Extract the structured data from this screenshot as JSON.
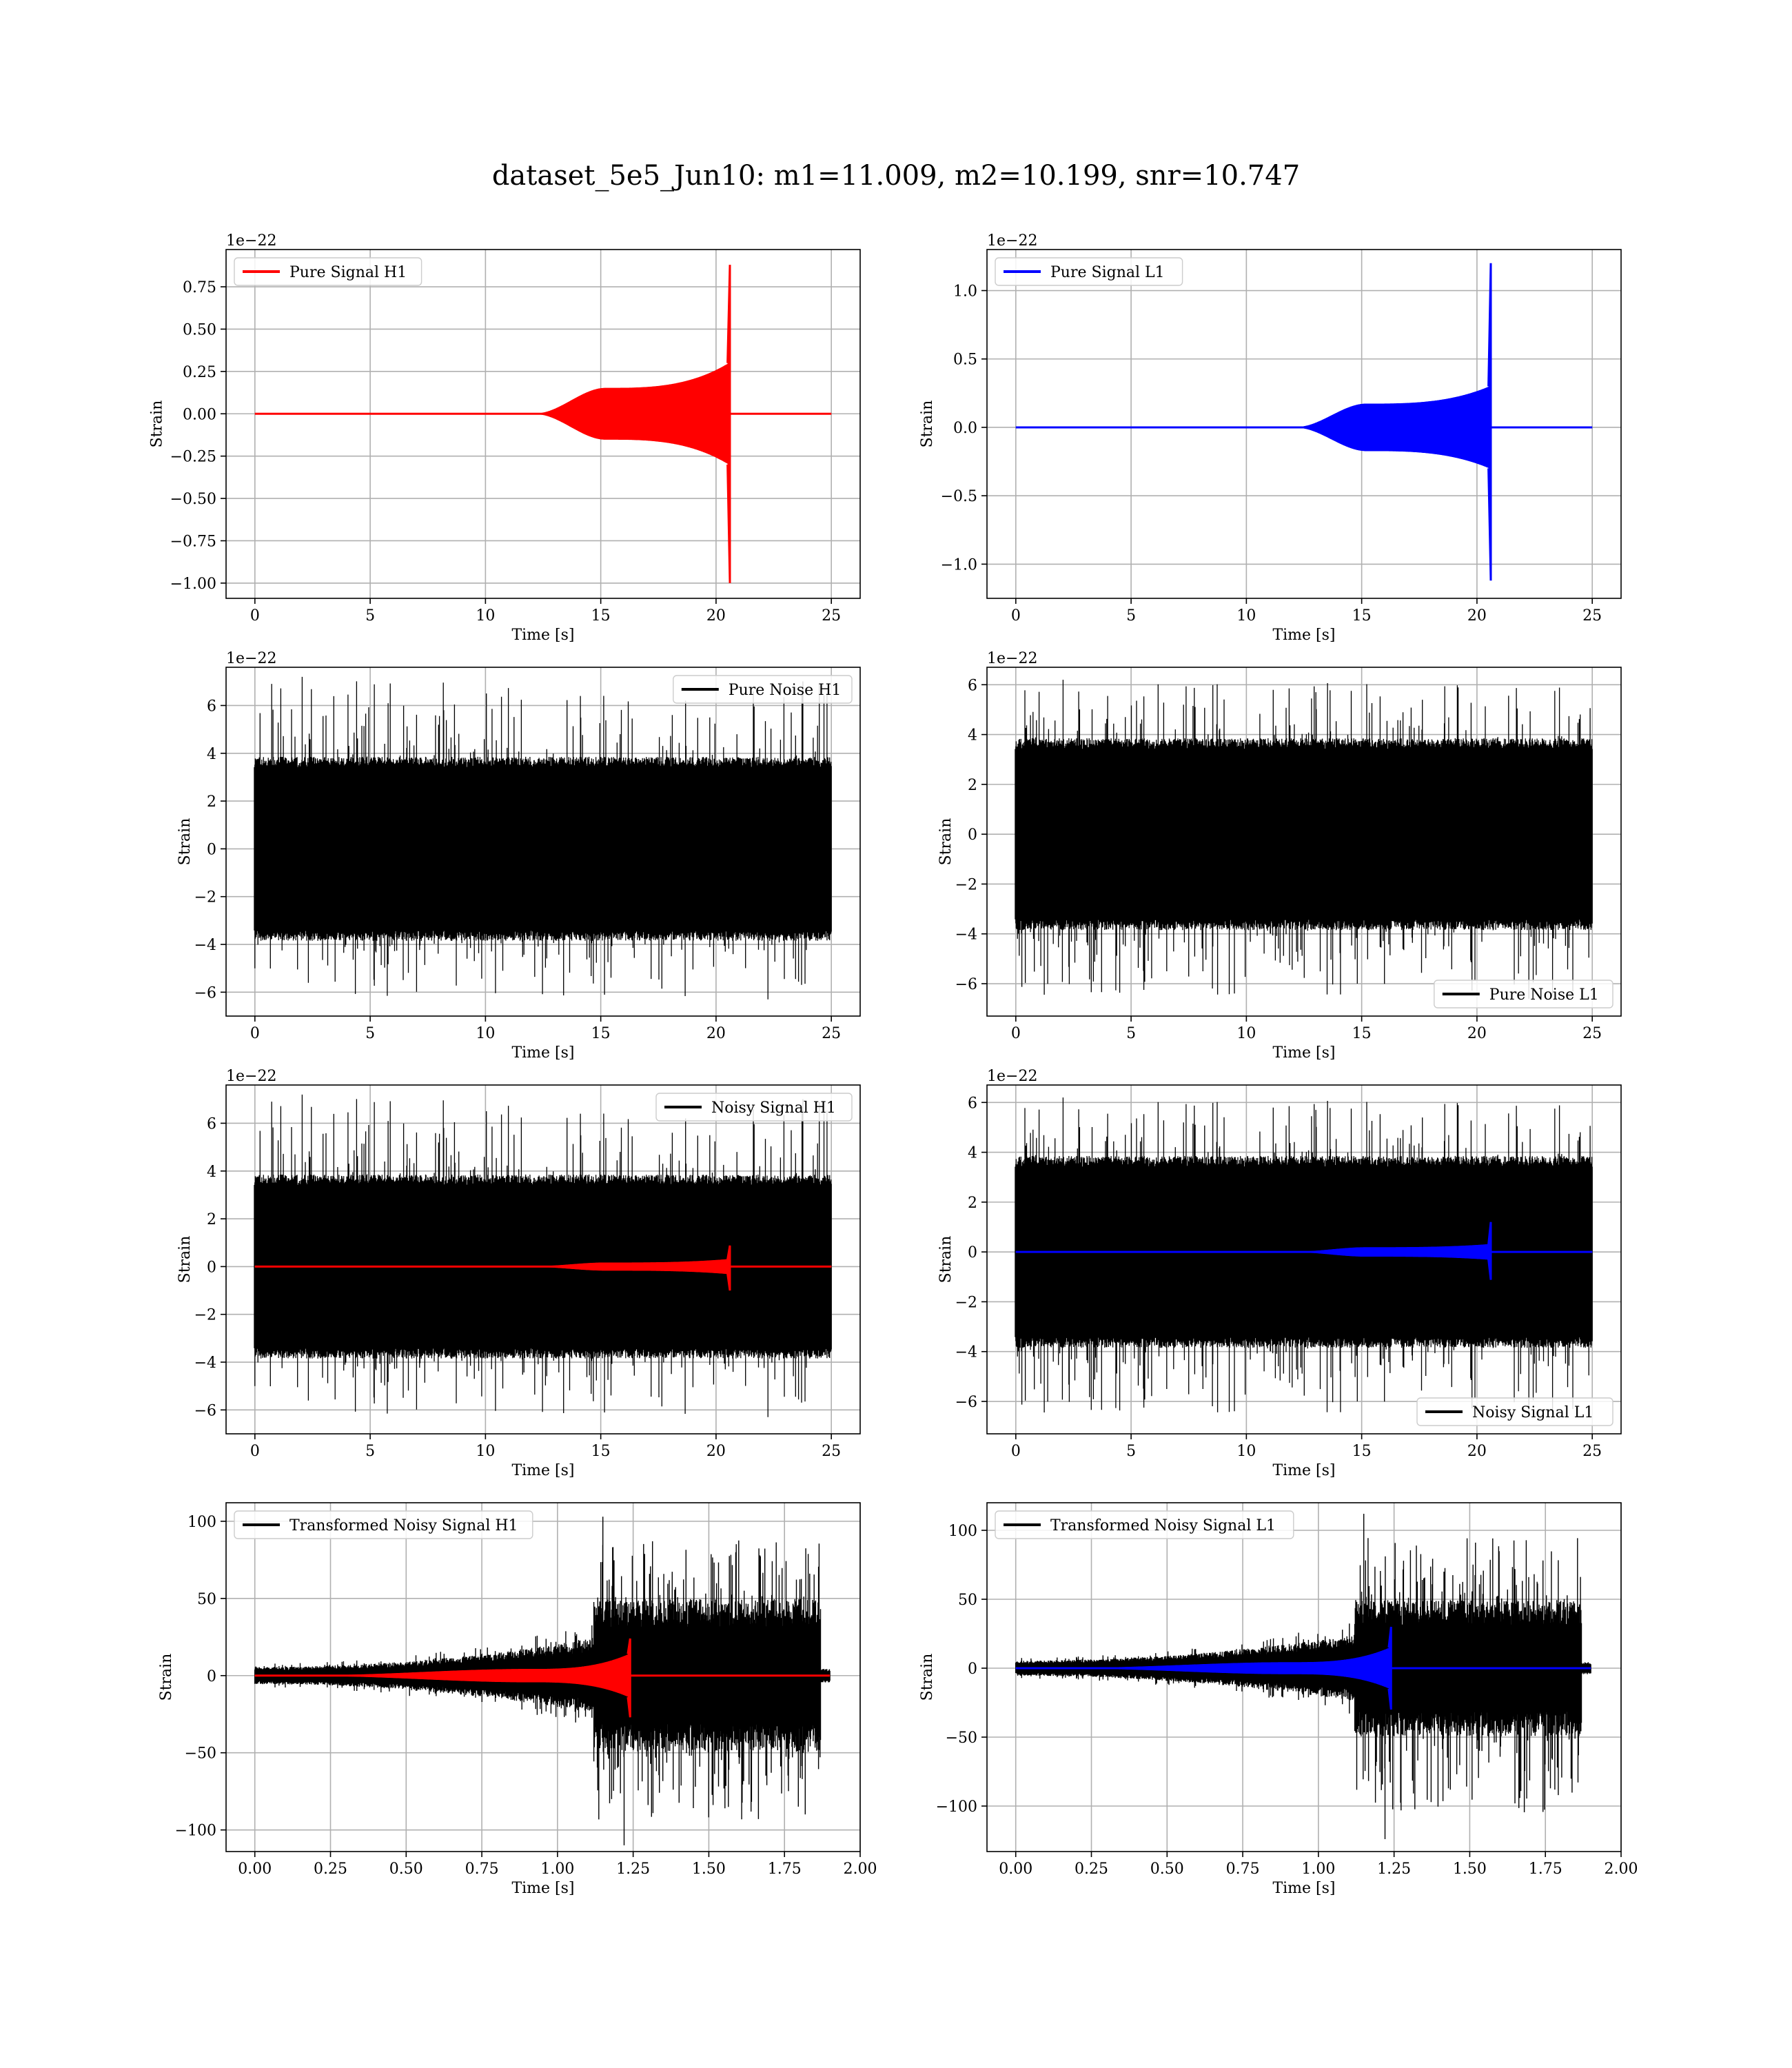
{
  "figure": {
    "title": "dataset_5e5_Jun10: m1=11.009, m2=10.199, snr=10.747"
  },
  "colors": {
    "h1_signal": "#ff0000",
    "l1_signal": "#0000ff",
    "noise": "#000000"
  },
  "chart_data": [
    {
      "id": "pure_signal_h1",
      "type": "line",
      "title": "",
      "xlabel": "Time [s]",
      "ylabel": "Strain",
      "offset_text": "1e−22",
      "xlim": [
        -1.25,
        26.25
      ],
      "ylim": [
        -1.09,
        0.97
      ],
      "xticks": [
        0,
        5,
        10,
        15,
        20,
        25
      ],
      "yticks": [
        -1.0,
        -0.75,
        -0.5,
        -0.25,
        0.0,
        0.25,
        0.5,
        0.75
      ],
      "ytick_labels": [
        "−1.00",
        "−0.75",
        "−0.50",
        "−0.25",
        "0.00",
        "0.25",
        "0.50",
        "0.75"
      ],
      "grid": true,
      "legend_loc": "upper left",
      "series": [
        {
          "name": "Pure Signal H1",
          "color": "#ff0000",
          "kind": "chirp",
          "x_start": 0,
          "x_end": 25,
          "t_onset": 12.2,
          "t_plateau": 15.2,
          "t_merger": 20.6,
          "plateau_amp": 0.15,
          "pre_merger_amp": 0.3,
          "peak_pos": 0.88,
          "peak_neg": -1.0
        }
      ]
    },
    {
      "id": "pure_signal_l1",
      "type": "line",
      "title": "",
      "xlabel": "Time [s]",
      "ylabel": "Strain",
      "offset_text": "1e−22",
      "xlim": [
        -1.25,
        26.25
      ],
      "ylim": [
        -1.25,
        1.3
      ],
      "xticks": [
        0,
        5,
        10,
        15,
        20,
        25
      ],
      "yticks": [
        -1.0,
        -0.5,
        0.0,
        0.5,
        1.0
      ],
      "ytick_labels": [
        "−1.0",
        "−0.5",
        "0.0",
        "0.5",
        "1.0"
      ],
      "grid": true,
      "legend_loc": "upper left",
      "series": [
        {
          "name": "Pure Signal L1",
          "color": "#0000ff",
          "kind": "chirp",
          "x_start": 0,
          "x_end": 25,
          "t_onset": 12.2,
          "t_plateau": 15.2,
          "t_merger": 20.6,
          "plateau_amp": 0.17,
          "pre_merger_amp": 0.3,
          "peak_pos": 1.2,
          "peak_neg": -1.12
        }
      ]
    },
    {
      "id": "pure_noise_h1",
      "type": "line",
      "title": "",
      "xlabel": "Time [s]",
      "ylabel": "Strain",
      "offset_text": "1e−22",
      "xlim": [
        -1.25,
        26.25
      ],
      "ylim": [
        -7.0,
        7.6
      ],
      "xticks": [
        0,
        5,
        10,
        15,
        20,
        25
      ],
      "yticks": [
        -6,
        -4,
        -2,
        0,
        2,
        4,
        6
      ],
      "ytick_labels": [
        "−6",
        "−4",
        "−2",
        "0",
        "2",
        "4",
        "6"
      ],
      "grid": true,
      "legend_loc": "upper right",
      "series": [
        {
          "name": "Pure Noise H1",
          "color": "#000000",
          "kind": "noise",
          "x_start": 0,
          "x_end": 25,
          "band_pos": 3.6,
          "band_neg": -3.6,
          "max": 7.2,
          "min": -6.3,
          "seed": 11
        }
      ]
    },
    {
      "id": "pure_noise_l1",
      "type": "line",
      "title": "",
      "xlabel": "Time [s]",
      "ylabel": "Strain",
      "offset_text": "1e−22",
      "xlim": [
        -1.25,
        26.25
      ],
      "ylim": [
        -7.3,
        6.7
      ],
      "xticks": [
        0,
        5,
        10,
        15,
        20,
        25
      ],
      "yticks": [
        -6,
        -4,
        -2,
        0,
        2,
        4,
        6
      ],
      "ytick_labels": [
        "−6",
        "−4",
        "−2",
        "0",
        "2",
        "4",
        "6"
      ],
      "grid": true,
      "legend_loc": "lower right",
      "series": [
        {
          "name": "Pure Noise L1",
          "color": "#000000",
          "kind": "noise",
          "x_start": 0,
          "x_end": 25,
          "band_pos": 3.6,
          "band_neg": -3.6,
          "max": 6.2,
          "min": -6.6,
          "seed": 23
        }
      ]
    },
    {
      "id": "noisy_signal_h1",
      "type": "line",
      "title": "",
      "xlabel": "Time [s]",
      "ylabel": "Strain",
      "offset_text": "1e−22",
      "xlim": [
        -1.25,
        26.25
      ],
      "ylim": [
        -7.0,
        7.6
      ],
      "xticks": [
        0,
        5,
        10,
        15,
        20,
        25
      ],
      "yticks": [
        -6,
        -4,
        -2,
        0,
        2,
        4,
        6
      ],
      "ytick_labels": [
        "−6",
        "−4",
        "−2",
        "0",
        "2",
        "4",
        "6"
      ],
      "grid": true,
      "legend_loc": "upper right",
      "series": [
        {
          "name": "Noisy Signal H1",
          "color": "#000000",
          "kind": "noise",
          "x_start": 0,
          "x_end": 25,
          "band_pos": 3.6,
          "band_neg": -3.6,
          "max": 7.2,
          "min": -6.3,
          "seed": 11
        },
        {
          "name": "",
          "color": "#ff0000",
          "kind": "chirp",
          "x_start": 0,
          "x_end": 25,
          "t_onset": 12.2,
          "t_plateau": 15.2,
          "t_merger": 20.6,
          "plateau_amp": 0.15,
          "pre_merger_amp": 0.3,
          "peak_pos": 0.88,
          "peak_neg": -1.0
        }
      ]
    },
    {
      "id": "noisy_signal_l1",
      "type": "line",
      "title": "",
      "xlabel": "Time [s]",
      "ylabel": "Strain",
      "offset_text": "1e−22",
      "xlim": [
        -1.25,
        26.25
      ],
      "ylim": [
        -7.3,
        6.7
      ],
      "xticks": [
        0,
        5,
        10,
        15,
        20,
        25
      ],
      "yticks": [
        -6,
        -4,
        -2,
        0,
        2,
        4,
        6
      ],
      "ytick_labels": [
        "−6",
        "−4",
        "−2",
        "0",
        "2",
        "4",
        "6"
      ],
      "grid": true,
      "legend_loc": "lower right",
      "series": [
        {
          "name": "Noisy Signal L1",
          "color": "#000000",
          "kind": "noise",
          "x_start": 0,
          "x_end": 25,
          "band_pos": 3.6,
          "band_neg": -3.6,
          "max": 6.2,
          "min": -6.6,
          "seed": 23
        },
        {
          "name": "",
          "color": "#0000ff",
          "kind": "chirp",
          "x_start": 0,
          "x_end": 25,
          "t_onset": 12.2,
          "t_plateau": 15.2,
          "t_merger": 20.6,
          "plateau_amp": 0.17,
          "pre_merger_amp": 0.3,
          "peak_pos": 1.2,
          "peak_neg": -1.12
        }
      ]
    },
    {
      "id": "transformed_noisy_signal_h1",
      "type": "line",
      "title": "",
      "xlabel": "Time [s]",
      "ylabel": "Strain",
      "offset_text": "",
      "xlim": [
        -0.095,
        2.0
      ],
      "ylim": [
        -114,
        112
      ],
      "xticks": [
        0.0,
        0.25,
        0.5,
        0.75,
        1.0,
        1.25,
        1.5,
        1.75,
        2.0
      ],
      "xtick_labels": [
        "0.00",
        "0.25",
        "0.50",
        "0.75",
        "1.00",
        "1.25",
        "1.50",
        "1.75",
        "2.00"
      ],
      "yticks": [
        -100,
        -50,
        0,
        50,
        100
      ],
      "ytick_labels": [
        "−100",
        "−50",
        "0",
        "50",
        "100"
      ],
      "grid": true,
      "legend_loc": "upper left",
      "series": [
        {
          "name": "Transformed Noisy Signal H1",
          "color": "#000000",
          "kind": "transformed",
          "x_start": 0,
          "x_end": 1.9,
          "t_jump": 1.12,
          "t_end_noise": 1.87,
          "low_amp_start": 5,
          "low_amp_end": 22,
          "high_amp": 45,
          "max": 103,
          "min": -110,
          "tail_amp": 4,
          "seed": 7
        },
        {
          "name": "",
          "color": "#ff0000",
          "kind": "chirp",
          "x_start": 0,
          "x_end": 1.9,
          "t_onset": 0.2,
          "t_plateau": 0.9,
          "t_merger": 1.24,
          "plateau_amp": 4,
          "pre_merger_amp": 14,
          "peak_pos": 24,
          "peak_neg": -27
        }
      ]
    },
    {
      "id": "transformed_noisy_signal_l1",
      "type": "line",
      "title": "",
      "xlabel": "Time [s]",
      "ylabel": "Strain",
      "offset_text": "",
      "xlim": [
        -0.095,
        2.0
      ],
      "ylim": [
        -133,
        120
      ],
      "xticks": [
        0.0,
        0.25,
        0.5,
        0.75,
        1.0,
        1.25,
        1.5,
        1.75,
        2.0
      ],
      "xtick_labels": [
        "0.00",
        "0.25",
        "0.50",
        "0.75",
        "1.00",
        "1.25",
        "1.50",
        "1.75",
        "2.00"
      ],
      "yticks": [
        -100,
        -50,
        0,
        50,
        100
      ],
      "ytick_labels": [
        "−100",
        "−50",
        "0",
        "50",
        "100"
      ],
      "grid": true,
      "legend_loc": "upper left",
      "series": [
        {
          "name": "Transformed Noisy Signal L1",
          "color": "#000000",
          "kind": "transformed",
          "x_start": 0,
          "x_end": 1.9,
          "t_jump": 1.12,
          "t_end_noise": 1.87,
          "low_amp_start": 5,
          "low_amp_end": 22,
          "high_amp": 45,
          "max": 112,
          "min": -124,
          "tail_amp": 4,
          "seed": 19
        },
        {
          "name": "",
          "color": "#0000ff",
          "kind": "chirp",
          "x_start": 0,
          "x_end": 1.9,
          "t_onset": 0.2,
          "t_plateau": 0.9,
          "t_merger": 1.24,
          "plateau_amp": 4,
          "pre_merger_amp": 15,
          "peak_pos": 30,
          "peak_neg": -30
        }
      ]
    }
  ]
}
